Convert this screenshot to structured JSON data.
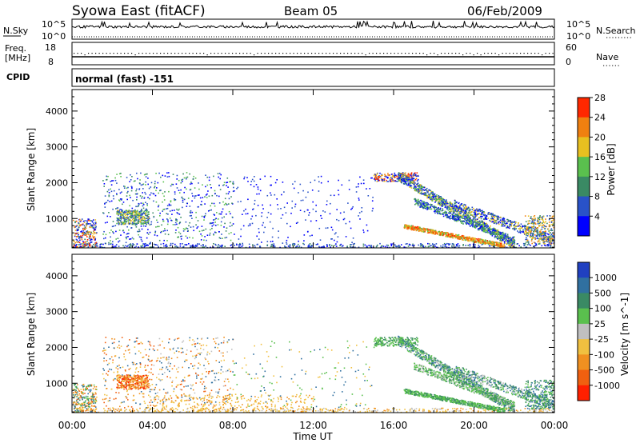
{
  "header": {
    "station": "Syowa East (fitACF)",
    "beam": "Beam 05",
    "date": "06/Feb/2009"
  },
  "noise_panel": {
    "left_label": "N.Sky",
    "right_label": "N.Search",
    "left_ticks": [
      "10^5",
      "10^0"
    ],
    "right_ticks": [
      "10^5",
      "10^0"
    ]
  },
  "freq_panel": {
    "left_label_1": "Freq.",
    "left_label_2": "[MHz]",
    "left_ticks": [
      "18",
      "8"
    ],
    "right_label": "Nave",
    "right_ticks": [
      "60",
      "0"
    ],
    "cpid_label": "CPID",
    "cpid_value": "normal (fast) -151"
  },
  "chart_data": [
    {
      "type": "heatmap",
      "name": "Power",
      "xlabel": "Time UT",
      "ylabel": "Slant Range [km]",
      "x_ticks": [
        "00:00",
        "04:00",
        "08:00",
        "12:00",
        "16:00",
        "20:00",
        "00:00"
      ],
      "y_ticks": [
        "1000",
        "2000",
        "3000",
        "4000"
      ],
      "ylim": [
        180,
        4600
      ],
      "colorbar_label": "Power [dB]",
      "colorbar_ticks": [
        "4",
        "8",
        "12",
        "16",
        "20",
        "24",
        "28"
      ],
      "colorbar_colors": [
        "#0000ff",
        "#2952c8",
        "#3a8a64",
        "#5ac04e",
        "#e8c020",
        "#f08010",
        "#ff2800"
      ]
    },
    {
      "type": "heatmap",
      "name": "Velocity",
      "xlabel": "Time UT",
      "ylabel": "Slant Range [km]",
      "x_ticks": [
        "00:00",
        "04:00",
        "08:00",
        "12:00",
        "16:00",
        "20:00",
        "00:00"
      ],
      "y_ticks": [
        "1000",
        "2000",
        "3000",
        "4000"
      ],
      "ylim": [
        180,
        4600
      ],
      "colorbar_label": "Velocity [m s^-1]",
      "colorbar_ticks": [
        "1000",
        "500",
        "100",
        "25",
        "-25",
        "-100",
        "-500",
        "-1000"
      ],
      "colorbar_colors": [
        "#2040c0",
        "#3070a0",
        "#3a8a64",
        "#5ac04e",
        "#c0c0c0",
        "#f0c040",
        "#f09020",
        "#f06010",
        "#ff2000"
      ]
    }
  ]
}
